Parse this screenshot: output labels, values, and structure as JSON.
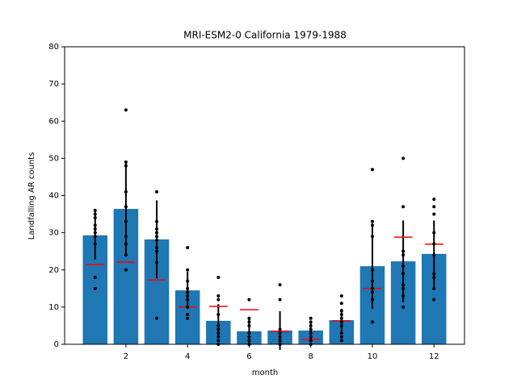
{
  "chart_data": {
    "type": "bar",
    "title": "MRI-ESM2-0 California 1979-1988",
    "x_label": "month",
    "y_label": "Landfalling AR counts",
    "x": [
      1,
      2,
      3,
      4,
      5,
      6,
      7,
      8,
      9,
      10,
      11,
      12
    ],
    "values": [
      29.3,
      36.4,
      28.2,
      14.5,
      6.3,
      3.5,
      3.7,
      3.7,
      6.5,
      21.0,
      22.3,
      24.3
    ],
    "errors": [
      6.5,
      12.5,
      10.5,
      5,
      4.5,
      3.5,
      5.2,
      2.5,
      3,
      11.5,
      11,
      9
    ],
    "medians": [
      21.4,
      22.1,
      17.3,
      10,
      10.2,
      9.3,
      3.5,
      1.3,
      6.3,
      15,
      28.8,
      26.9
    ],
    "points": [
      [
        36,
        35,
        34,
        32,
        31,
        30,
        29,
        27,
        18,
        15
      ],
      [
        63,
        49,
        48,
        41,
        37,
        33,
        29,
        27,
        24,
        20
      ],
      [
        41,
        33,
        31,
        30,
        29,
        28,
        26,
        25,
        22,
        7
      ],
      [
        26,
        20,
        17,
        15,
        14,
        13,
        12,
        10,
        8,
        7
      ],
      [
        18,
        13,
        12,
        8,
        5,
        4,
        3,
        2,
        1,
        0
      ],
      [
        12,
        7,
        6,
        5,
        3,
        2,
        1,
        0,
        0,
        0
      ],
      [
        16,
        12,
        4,
        3,
        2,
        1,
        1,
        0,
        0,
        0
      ],
      [
        7,
        6,
        5,
        4,
        3,
        2,
        1,
        1,
        0,
        0
      ],
      [
        13,
        11,
        9,
        8,
        7,
        6,
        5,
        3,
        2,
        1
      ],
      [
        47,
        33,
        32,
        29,
        20,
        17,
        15,
        14,
        12,
        6
      ],
      [
        50,
        37,
        25,
        24,
        21,
        19,
        16,
        15,
        13,
        10
      ],
      [
        39,
        37,
        35,
        30,
        27,
        24,
        19,
        18,
        15,
        12
      ]
    ],
    "color": "#1f77b4",
    "median_color": "#ff0000",
    "point_color": "#000000",
    "error_color": "#000000",
    "bar_width": 0.8,
    "xlim": [
      0.01,
      12.99
    ],
    "xticks": [
      2,
      4,
      6,
      8,
      10,
      12
    ],
    "ylim": [
      0,
      80
    ],
    "yticks": [
      0,
      10,
      20,
      30,
      40,
      50,
      60,
      70,
      80
    ]
  }
}
